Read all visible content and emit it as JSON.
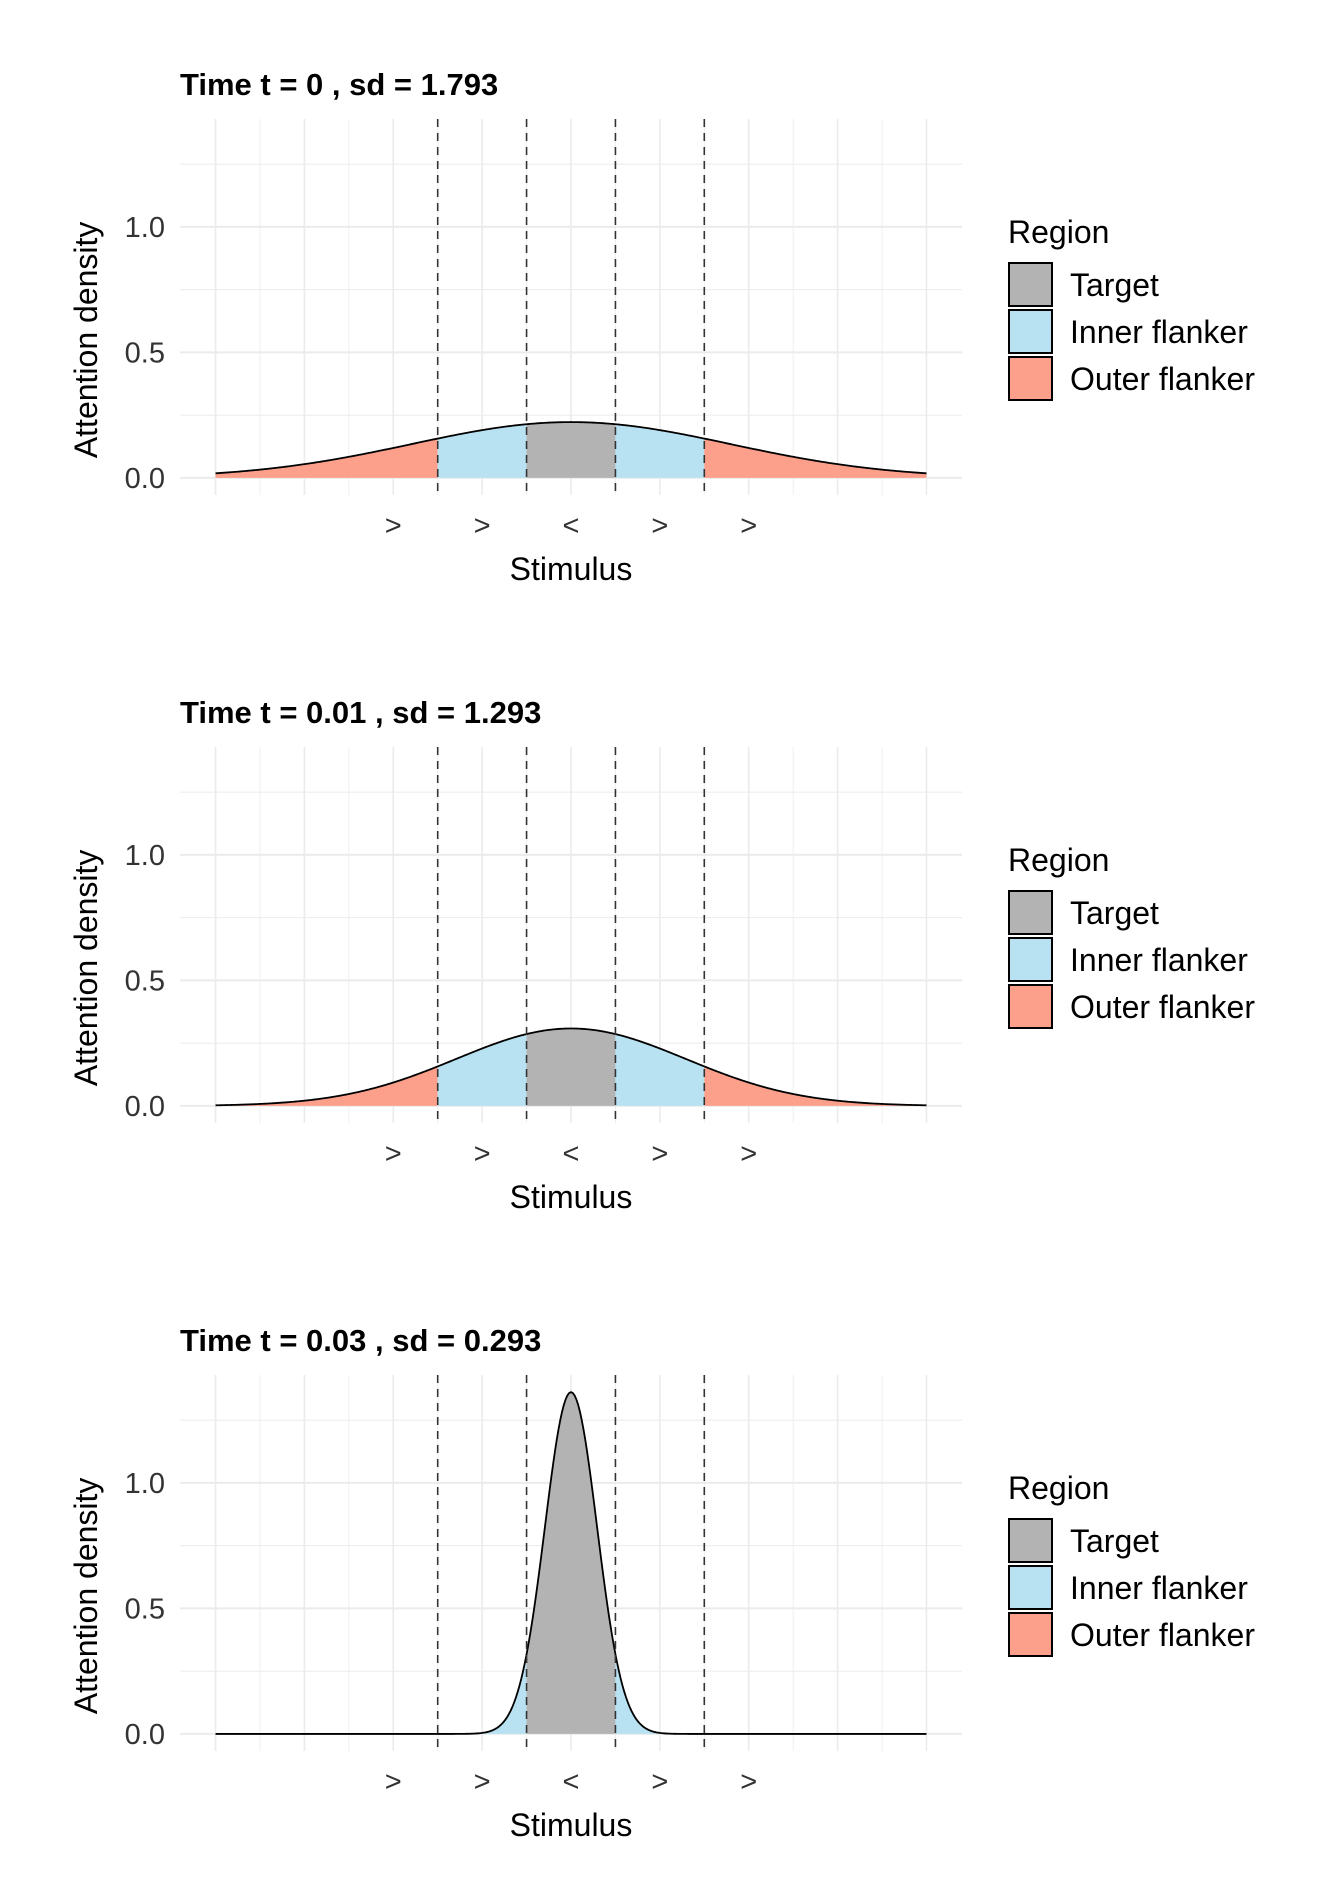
{
  "chart_data": [
    {
      "type": "area",
      "title": "Time t = 0 , sd = 1.793",
      "sd": 1.793,
      "mean": 0
    },
    {
      "type": "area",
      "title": "Time t = 0.01 , sd = 1.293",
      "sd": 1.293,
      "mean": 0
    },
    {
      "type": "area",
      "title": "Time t = 0.03 , sd = 0.293",
      "sd": 0.293,
      "mean": 0
    }
  ],
  "shared": {
    "xlabel": "Stimulus",
    "ylabel": "Attention density",
    "x_ticks": [
      -2,
      -1,
      0,
      1,
      2
    ],
    "x_tick_labels": [
      ">",
      ">",
      "<",
      ">",
      ">"
    ],
    "y_ticks": [
      0,
      0.5,
      1.0
    ],
    "y_tick_labels": [
      "0.0",
      "0.5",
      "1.0"
    ],
    "xlim": [
      -4.4,
      4.4
    ],
    "ylim": [
      -0.068,
      1.43
    ],
    "curve_range": [
      -4,
      4
    ],
    "region_boundaries": [
      -1.5,
      -0.5,
      0.5,
      1.5
    ],
    "grid": true,
    "legend_position": "right",
    "legend": {
      "title": "Region",
      "entries": [
        {
          "label": "Target",
          "color": "#b3b3b3"
        },
        {
          "label": "Inner flanker",
          "color": "#b8e2f2"
        },
        {
          "label": "Outer flanker",
          "color": "#fca08c"
        }
      ]
    }
  }
}
